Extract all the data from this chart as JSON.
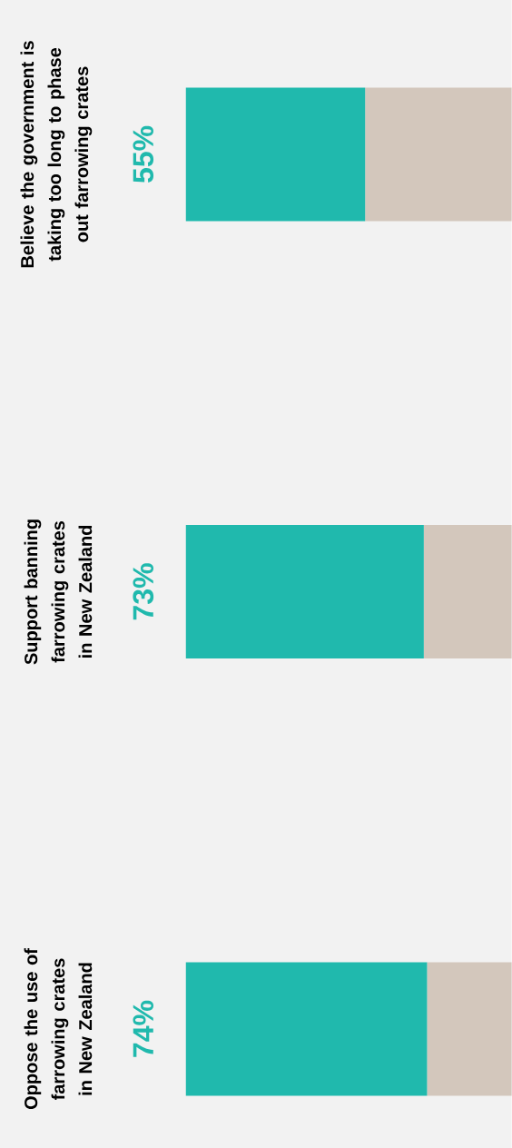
{
  "chart_data": {
    "type": "bar",
    "stacked": true,
    "orientation": "horizontal",
    "tick_labels": false,
    "categories": [
      "Believe the government is taking too long to phase out farrowing crates",
      "Support banning farrowing crates in New Zealand",
      "Oppose the use of farrowing crates in New Zealand"
    ],
    "series": [
      {
        "color": "#20b9ad",
        "values": [
          55,
          73,
          74
        ],
        "value_labels": [
          "55%",
          "73%",
          "74%"
        ]
      },
      {
        "color": "#d3c7bc",
        "values": [
          45,
          27,
          26
        ]
      }
    ]
  }
}
